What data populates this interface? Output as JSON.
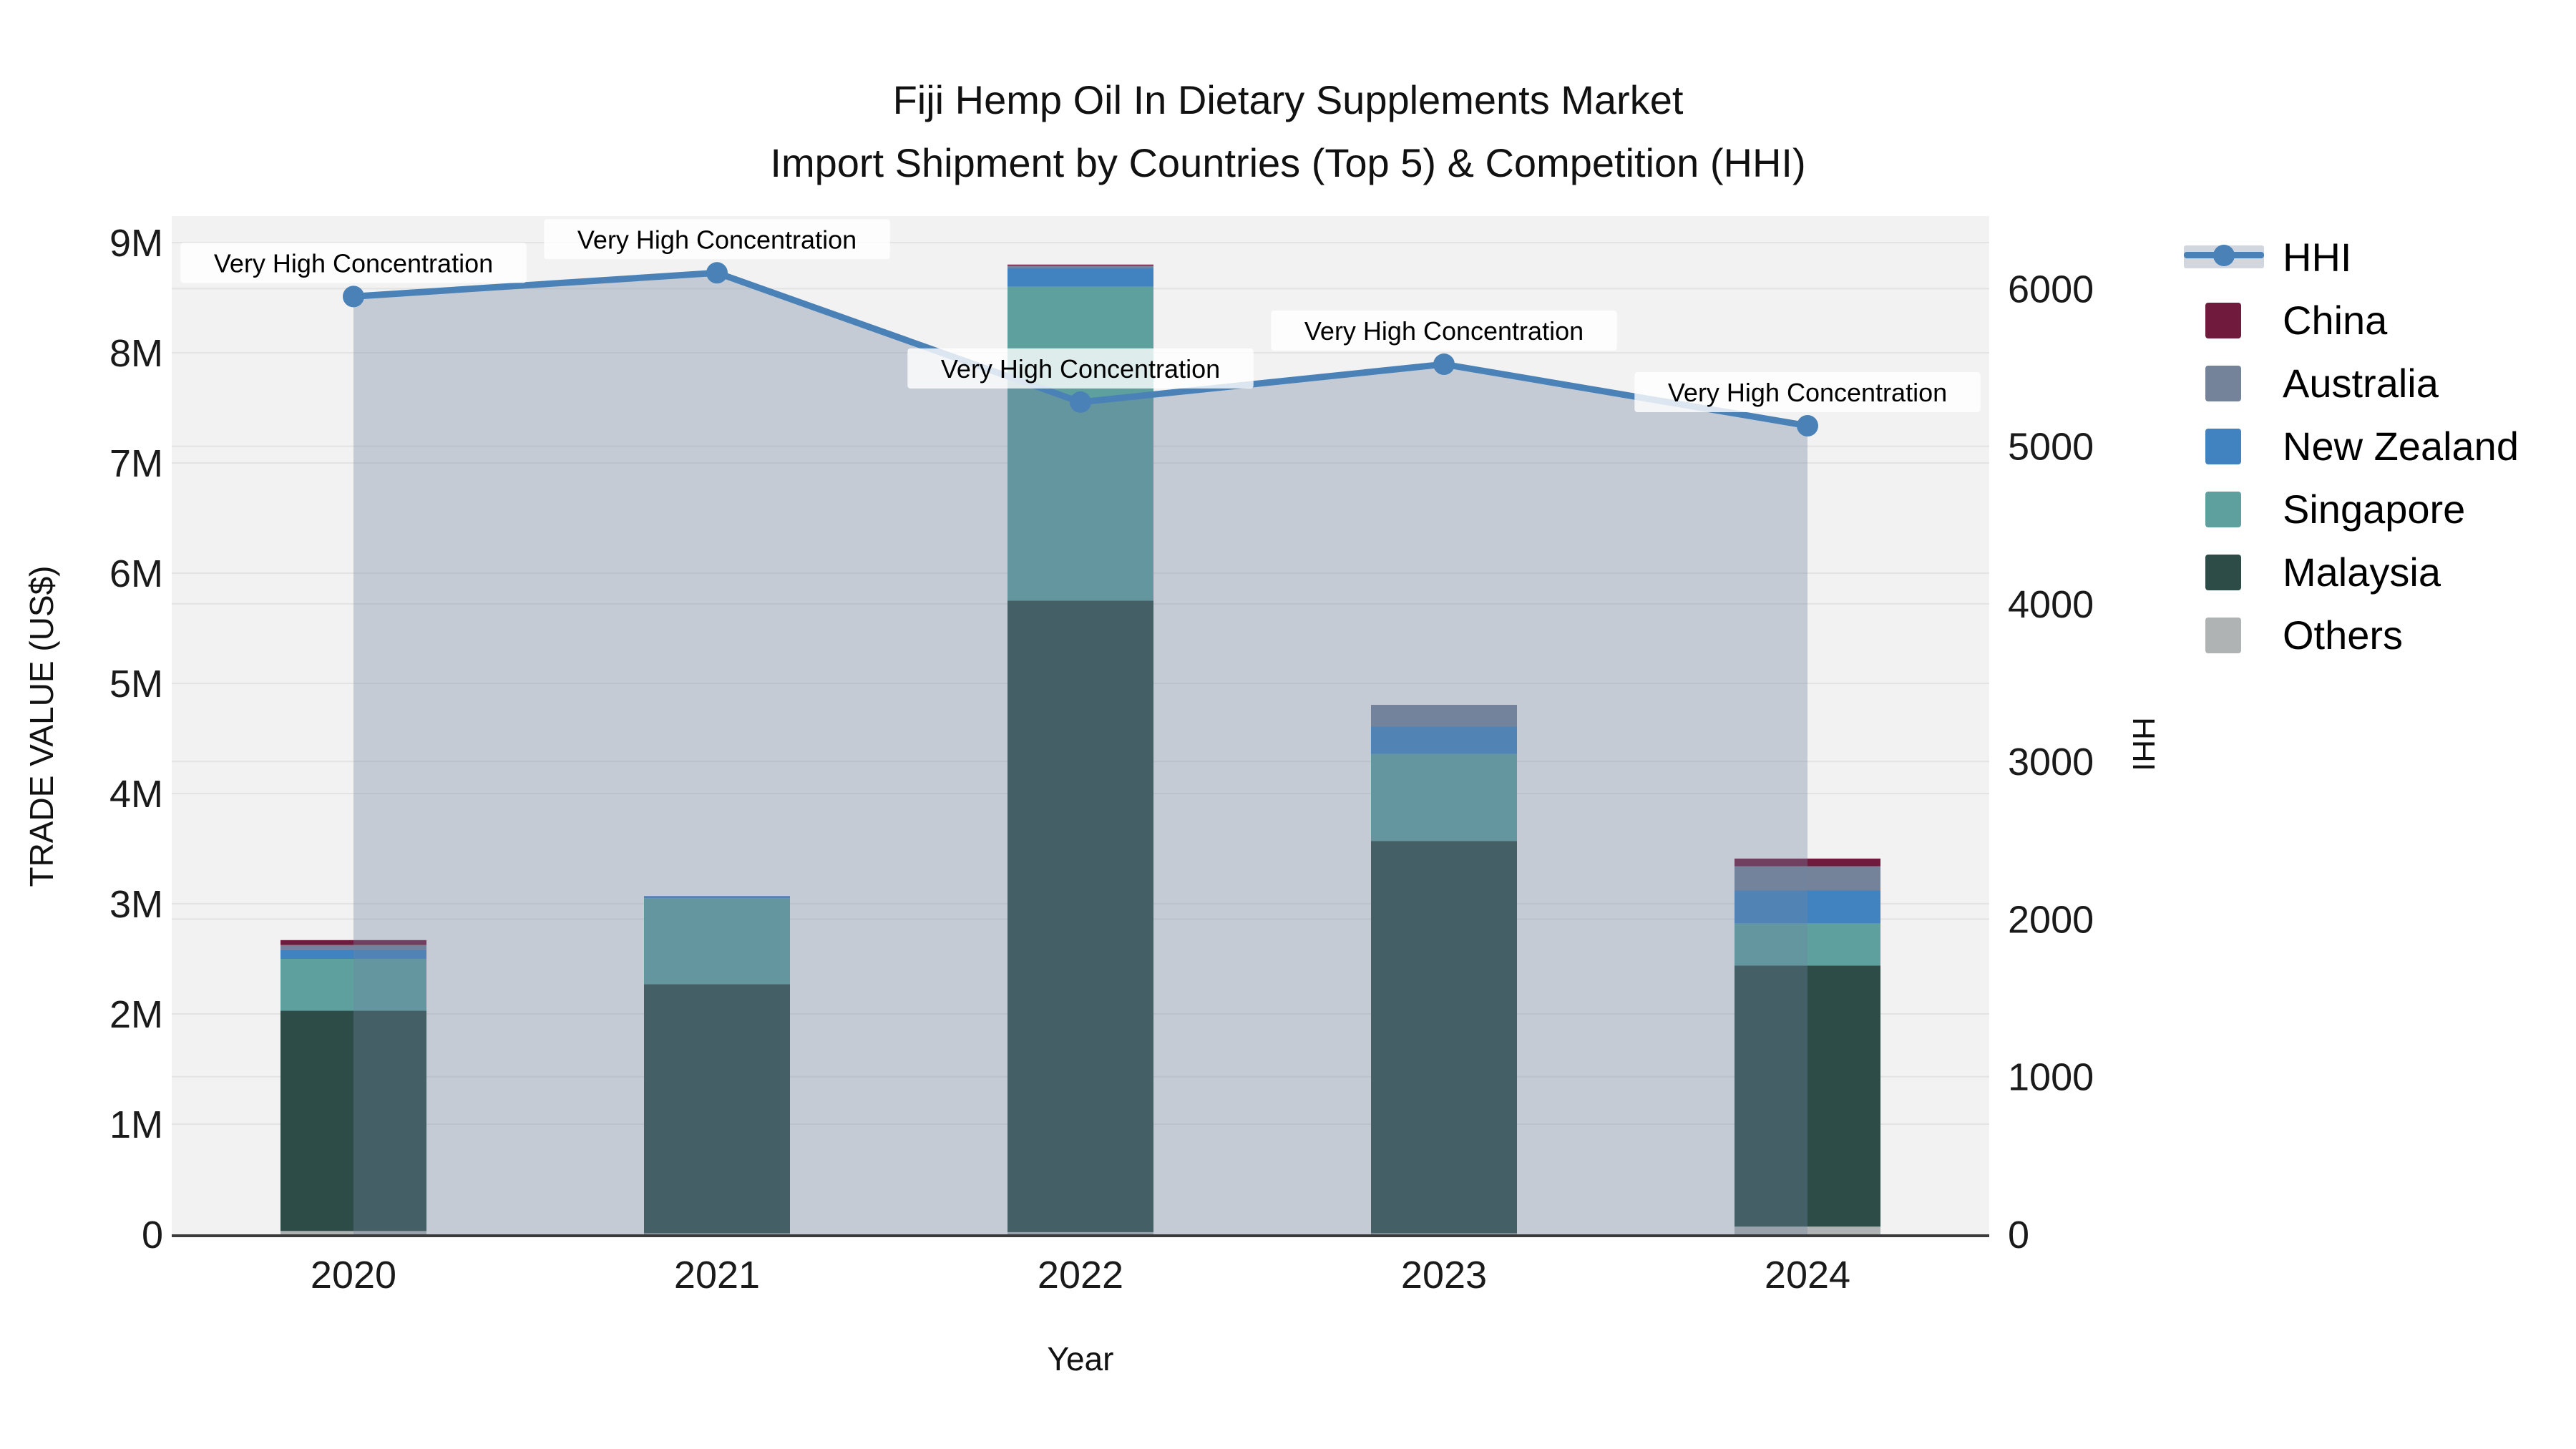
{
  "chart_data": {
    "type": "combo-stacked-bar-line",
    "title": "Fiji Hemp Oil In Dietary Supplements Market",
    "subtitle": "Import Shipment by Countries (Top 5) & Competition (HHI)",
    "xlabel": "Year",
    "ylabel_left": "TRADE VALUE (US$)",
    "ylabel_right": "HHI",
    "categories": [
      "2020",
      "2021",
      "2022",
      "2023",
      "2024"
    ],
    "bar_unit": "US$",
    "series": [
      {
        "name": "China",
        "color": "#701b3d",
        "values": [
          45000,
          0,
          10000,
          0,
          70000
        ]
      },
      {
        "name": "Australia",
        "color": "#75839a",
        "values": [
          40000,
          0,
          20000,
          195000,
          220000
        ]
      },
      {
        "name": "New Zealand",
        "color": "#4183c1",
        "values": [
          85000,
          20000,
          170000,
          250000,
          300000
        ]
      },
      {
        "name": "Singapore",
        "color": "#5da09e",
        "values": [
          470000,
          780000,
          2850000,
          790000,
          380000
        ]
      },
      {
        "name": "Malaysia",
        "color": "#2d4c48",
        "values": [
          2000000,
          2260000,
          5730000,
          3560000,
          2370000
        ]
      },
      {
        "name": "Others",
        "color": "#afb3b3",
        "values": [
          30000,
          10000,
          20000,
          10000,
          70000
        ]
      }
    ],
    "line": {
      "name": "HHI",
      "color": "#4a82b8",
      "area_fill": "rgba(115,132,160,0.35)",
      "axis": "right",
      "values": [
        5950,
        6100,
        5280,
        5520,
        5130
      ]
    },
    "annotations": [
      "Very High Concentration",
      "Very High Concentration",
      "Very High Concentration",
      "Very High Concentration",
      "Very High Concentration"
    ],
    "y_left": {
      "tick_labels": [
        "0",
        "1M",
        "2M",
        "3M",
        "4M",
        "5M",
        "6M",
        "7M",
        "8M",
        "9M"
      ],
      "tick_values": [
        0,
        1000000,
        2000000,
        3000000,
        4000000,
        5000000,
        6000000,
        7000000,
        8000000,
        9000000
      ],
      "range": [
        0,
        9240000
      ],
      "grid": true
    },
    "y_right": {
      "tick_labels": [
        "0",
        "1000",
        "2000",
        "3000",
        "4000",
        "5000",
        "6000"
      ],
      "tick_values": [
        0,
        1000,
        2000,
        3000,
        4000,
        5000,
        6000
      ],
      "range": [
        0,
        6460
      ],
      "grid": true
    },
    "legend_position": "right",
    "legend_order": [
      "HHI",
      "China",
      "Australia",
      "New Zealand",
      "Singapore",
      "Malaysia",
      "Others"
    ]
  }
}
